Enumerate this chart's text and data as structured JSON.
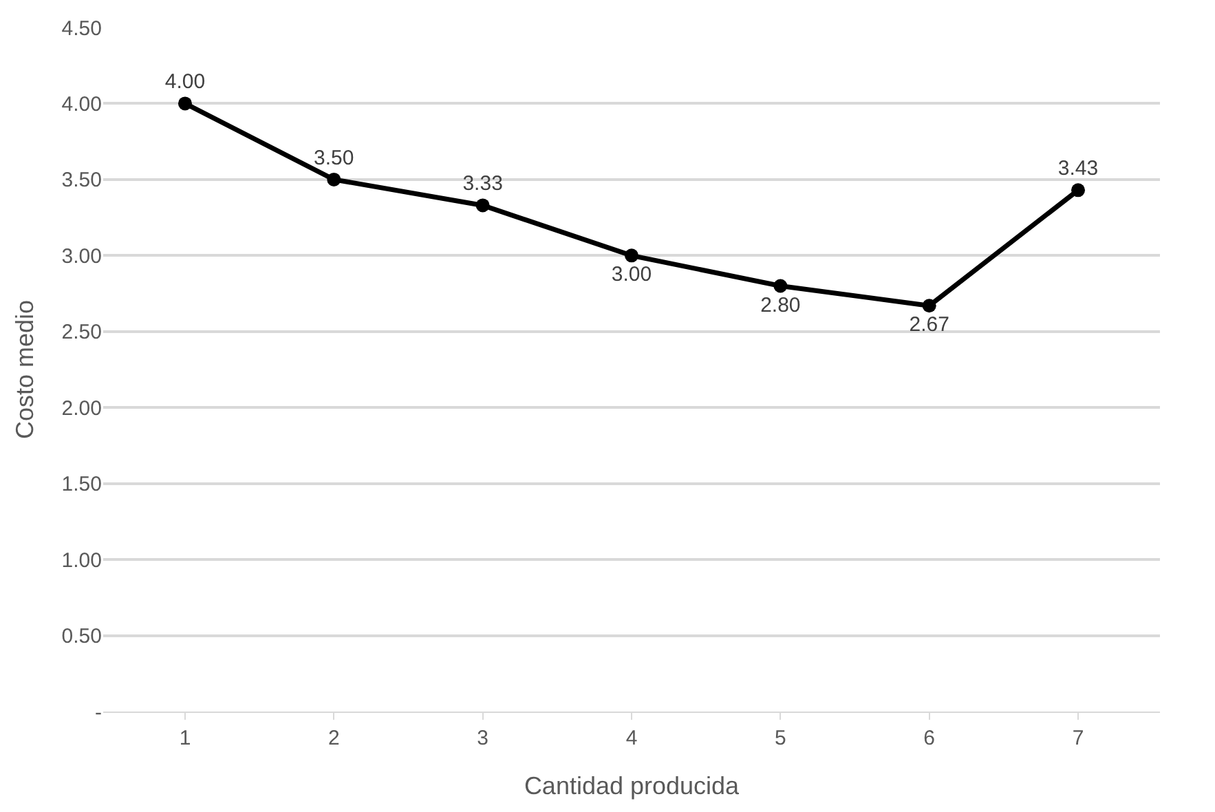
{
  "chart_data": {
    "type": "line",
    "xlabel": "Cantidad producida",
    "ylabel": "Costo medio",
    "categories": [
      "1",
      "2",
      "3",
      "4",
      "5",
      "6",
      "7"
    ],
    "series": [
      {
        "color": "#000000",
        "values": [
          4.0,
          3.5,
          3.33,
          3.0,
          2.8,
          2.67,
          3.43
        ],
        "value_labels": [
          "4.00",
          "3.50",
          "3.33",
          "3.00",
          "2.80",
          "2.67",
          "3.43"
        ]
      }
    ],
    "ylim": [
      0,
      4.5
    ],
    "yticks": [
      {
        "value": 0,
        "label": "-"
      },
      {
        "value": 0.5,
        "label": "0.50"
      },
      {
        "value": 1,
        "label": "1.00"
      },
      {
        "value": 1.5,
        "label": "1.50"
      },
      {
        "value": 2,
        "label": "2.00"
      },
      {
        "value": 2.5,
        "label": "2.50"
      },
      {
        "value": 3,
        "label": "3.00"
      },
      {
        "value": 3.5,
        "label": "3.50"
      },
      {
        "value": 4,
        "label": "4.00"
      },
      {
        "value": 4.5,
        "label": "4.50"
      }
    ],
    "grid": "y",
    "marker": "circle",
    "line_style": "solid"
  }
}
